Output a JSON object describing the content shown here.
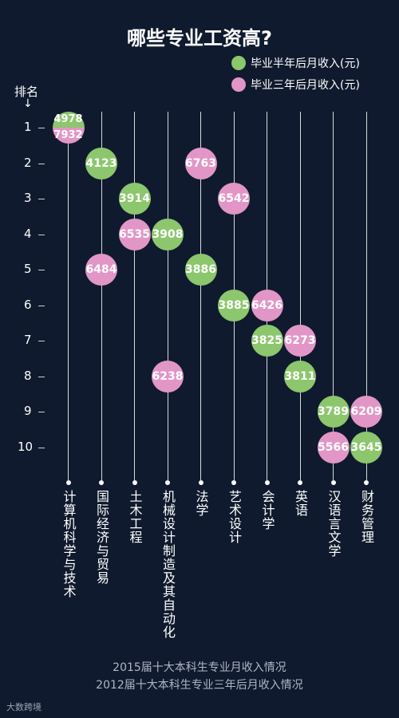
{
  "chart_data": {
    "type": "scatter",
    "title": "哪些专业工资高?",
    "rank_label": "排名",
    "rank_arrow": "↓",
    "ranks": [
      "1",
      "2",
      "3",
      "4",
      "5",
      "6",
      "7",
      "8",
      "9",
      "10"
    ],
    "categories": [
      "计算机科学与技术",
      "国际经济与贸易",
      "土木工程",
      "机械设计制造及其自动化",
      "法学",
      "艺术设计",
      "会计学",
      "英语",
      "汉语言文学",
      "财务管理"
    ],
    "series": [
      {
        "name": "毕业半年后月收入(元)",
        "color": "#8cc66d",
        "points": [
          {
            "category": "计算机科学与技术",
            "rank": 1,
            "value": "4978"
          },
          {
            "category": "国际经济与贸易",
            "rank": 2,
            "value": "4123"
          },
          {
            "category": "土木工程",
            "rank": 3,
            "value": "3914"
          },
          {
            "category": "机械设计制造及其自动化",
            "rank": 4,
            "value": "3908"
          },
          {
            "category": "法学",
            "rank": 5,
            "value": "3886"
          },
          {
            "category": "艺术设计",
            "rank": 6,
            "value": "3885"
          },
          {
            "category": "会计学",
            "rank": 7,
            "value": "3825"
          },
          {
            "category": "英语",
            "rank": 8,
            "value": "3811"
          },
          {
            "category": "汉语言文学",
            "rank": 9,
            "value": "3789"
          },
          {
            "category": "财务管理",
            "rank": 10,
            "value": "3645"
          }
        ]
      },
      {
        "name": "毕业三年后月收入(元)",
        "color": "#e196c7",
        "points": [
          {
            "category": "计算机科学与技术",
            "rank": 1,
            "value": "7932"
          },
          {
            "category": "法学",
            "rank": 2,
            "value": "6763"
          },
          {
            "category": "艺术设计",
            "rank": 3,
            "value": "6542"
          },
          {
            "category": "土木工程",
            "rank": 4,
            "value": "6535"
          },
          {
            "category": "国际经济与贸易",
            "rank": 5,
            "value": "6484"
          },
          {
            "category": "会计学",
            "rank": 6,
            "value": "6426"
          },
          {
            "category": "英语",
            "rank": 7,
            "value": "6273"
          },
          {
            "category": "机械设计制造及其自动化",
            "rank": 8,
            "value": "6238"
          },
          {
            "category": "财务管理",
            "rank": 9,
            "value": "6209"
          },
          {
            "category": "汉语言文学",
            "rank": 10,
            "value": "5566"
          }
        ]
      }
    ],
    "source_lines": [
      "2015届十大本科生专业月收入情况",
      "2012届十大本科生专业三年后月收入情况"
    ]
  },
  "brand": "大数跨境"
}
